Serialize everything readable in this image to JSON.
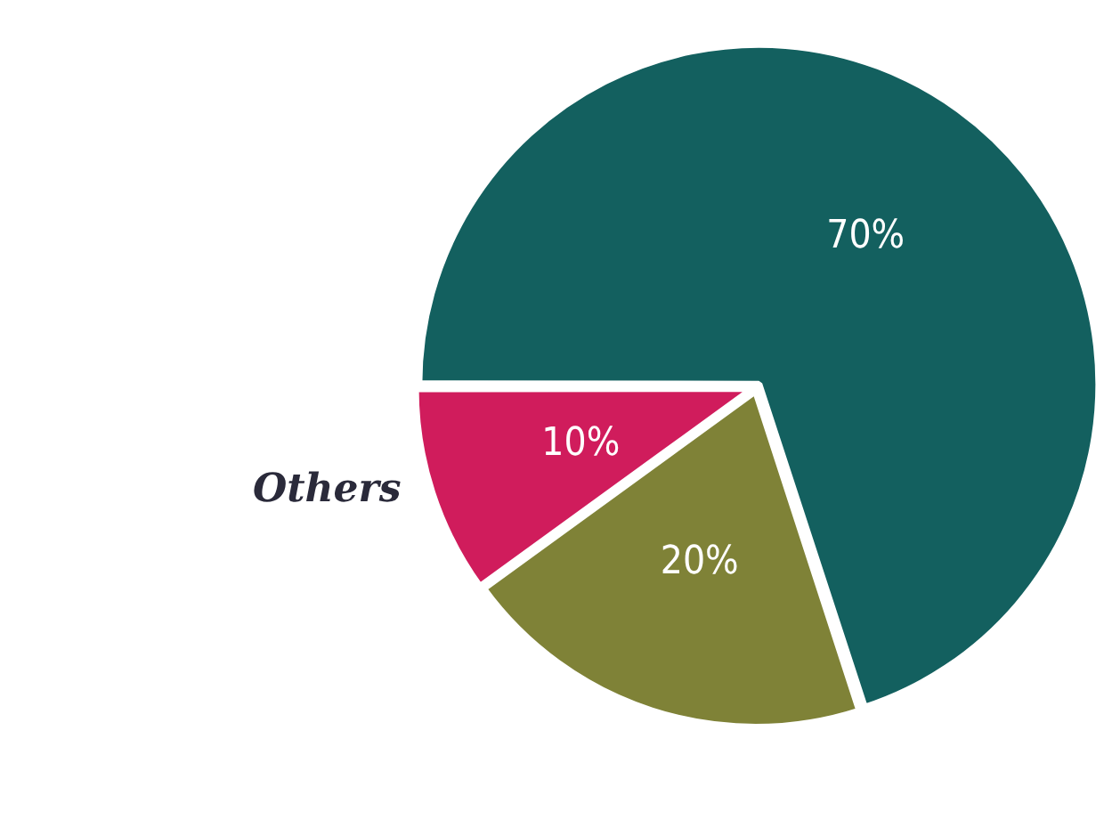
{
  "chart_data": {
    "type": "pie",
    "categories": [
      null,
      null,
      "Others"
    ],
    "values": [
      70,
      20,
      10
    ],
    "colors": [
      "#13605f",
      "#7f8237",
      "#d01c5c"
    ],
    "value_labels": [
      "70%",
      "20%",
      "10%"
    ]
  }
}
